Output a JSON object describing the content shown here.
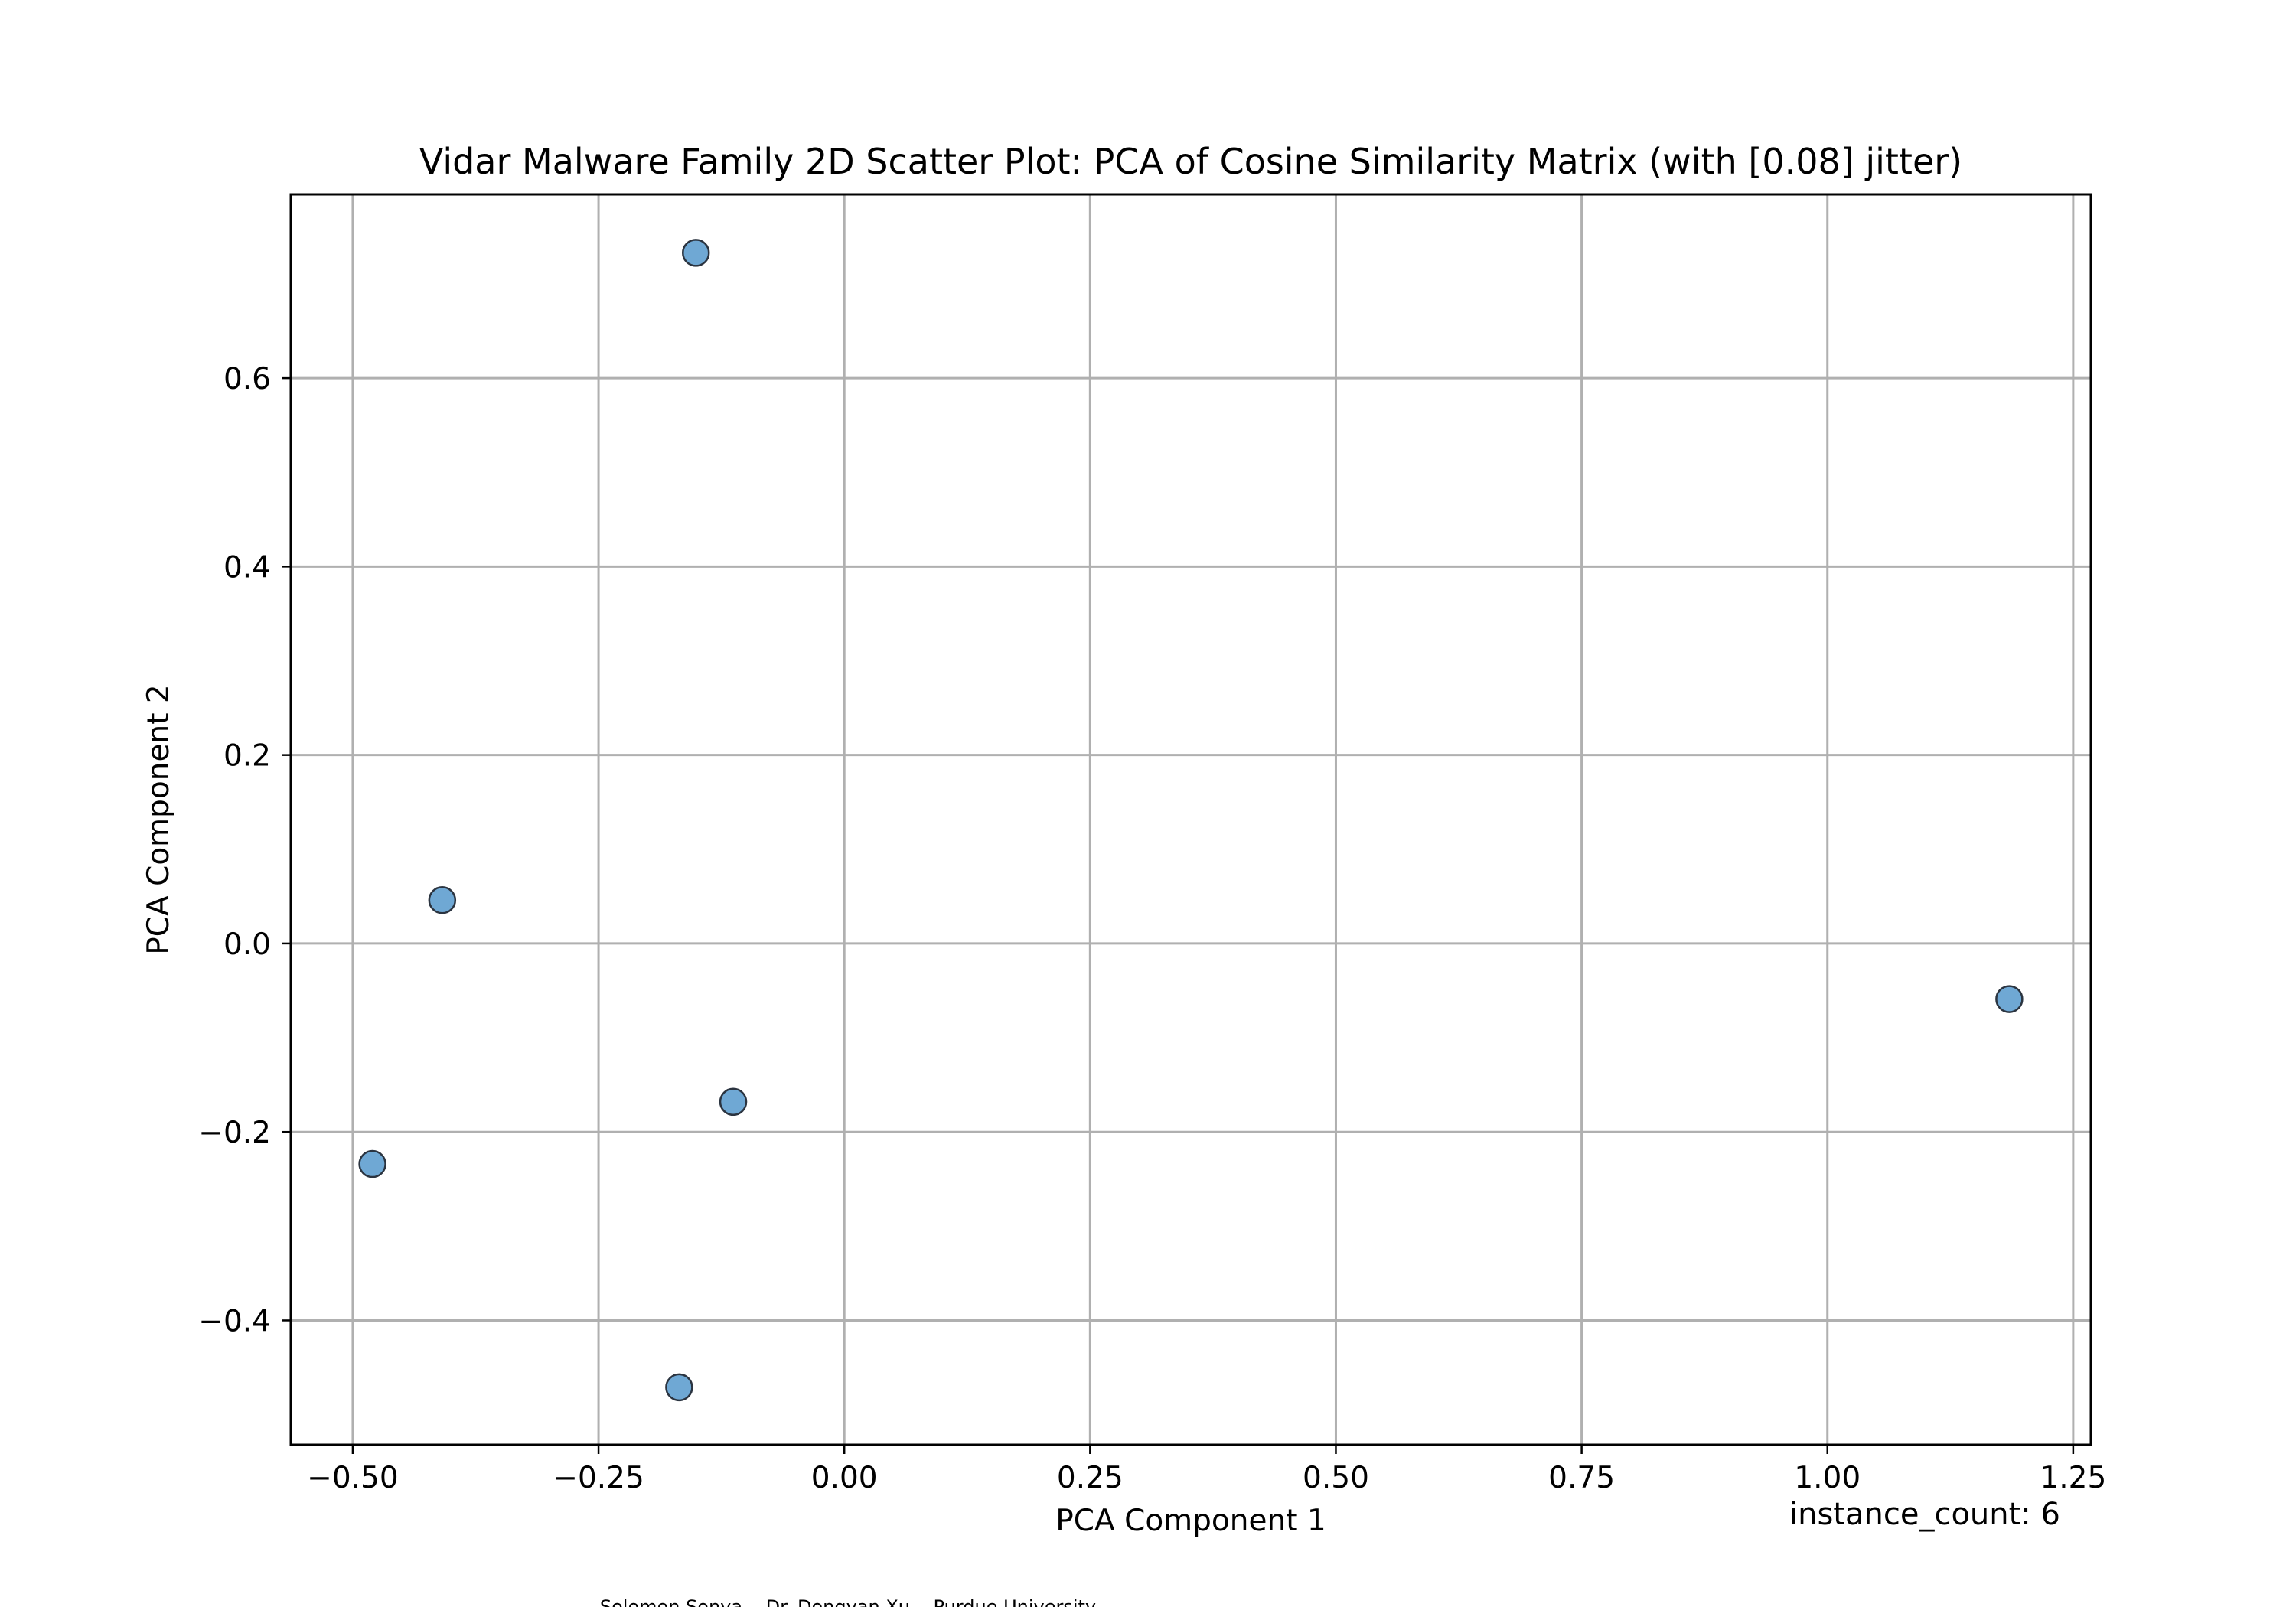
{
  "chart_data": {
    "type": "scatter",
    "title": "Vidar Malware Family 2D Scatter Plot: PCA of Cosine Similarity Matrix (with [0.08] jitter)",
    "xlabel": "PCA Component 1",
    "ylabel": "PCA Component 2",
    "xlim": [
      -0.563,
      1.268
    ],
    "ylim": [
      -0.532,
      0.795
    ],
    "xticks": [
      -0.5,
      -0.25,
      0.0,
      0.25,
      0.5,
      0.75,
      1.0,
      1.25
    ],
    "xtick_labels": [
      "−0.50",
      "−0.25",
      "0.00",
      "0.25",
      "0.50",
      "0.75",
      "1.00",
      "1.25"
    ],
    "yticks": [
      -0.4,
      -0.2,
      0.0,
      0.2,
      0.4,
      0.6
    ],
    "ytick_labels": [
      "−0.4",
      "−0.2",
      "0.0",
      "0.2",
      "0.4",
      "0.6"
    ],
    "grid": true,
    "points": [
      {
        "x": -0.151,
        "y": 0.733
      },
      {
        "x": -0.409,
        "y": 0.046
      },
      {
        "x": -0.48,
        "y": -0.234
      },
      {
        "x": -0.113,
        "y": -0.168
      },
      {
        "x": -0.168,
        "y": -0.471
      },
      {
        "x": 1.185,
        "y": -0.059
      }
    ],
    "point_color": "#6fa8d4",
    "annotation": "instance_count: 6"
  },
  "footer": {
    "authors": "Solomon Sonya    Dr. Dongyan Xu    Purdue University"
  }
}
